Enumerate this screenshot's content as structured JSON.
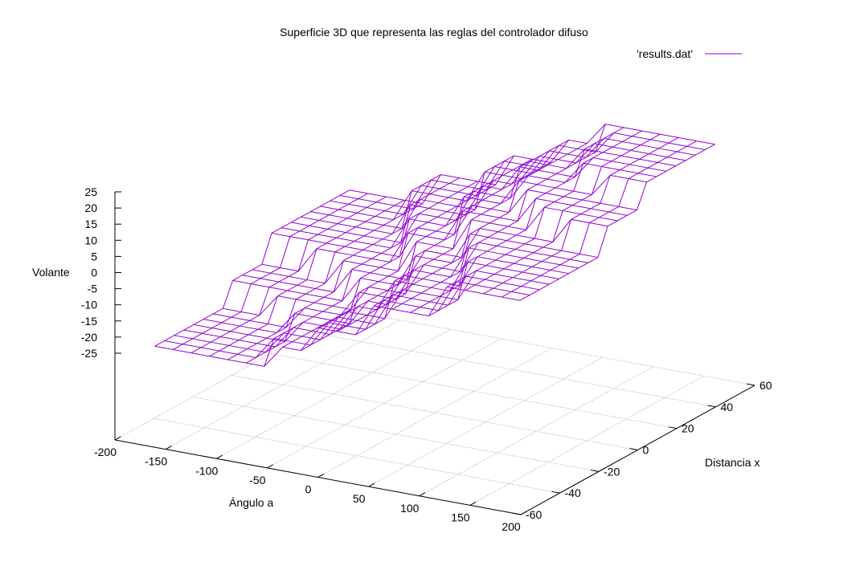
{
  "chart_data": {
    "type": "surface3d",
    "title": "Superficie 3D que representa las reglas del controlador difuso",
    "legend": {
      "label": "'results.dat'",
      "position": "top-right",
      "color": "#9400d3"
    },
    "xlabel": "Ángulo a",
    "ylabel": "Distancia x",
    "zlabel": "Volante",
    "xlim": [
      -200,
      200
    ],
    "ylim": [
      -60,
      60
    ],
    "zlim": [
      -25,
      25
    ],
    "x_ticks": [
      "-200",
      "-150",
      "-100",
      "-50",
      "0",
      "50",
      "100",
      "150",
      "200"
    ],
    "y_ticks": [
      "-60",
      "-40",
      "-20",
      "0",
      "20",
      "40",
      "60"
    ],
    "z_ticks": [
      "25",
      "20",
      "15",
      "10",
      "5",
      "0",
      "-5",
      "-10",
      "-15",
      "-20",
      "-25"
    ],
    "grid": true,
    "surface": {
      "x_range": [
        -180,
        180
      ],
      "y_range": [
        -50,
        50
      ],
      "grid_points": 21,
      "z_levels": [
        -25,
        -18,
        -10,
        0,
        10,
        18,
        25
      ]
    },
    "colors": {
      "surface": "#9400d3",
      "axes": "#000000",
      "grid": "#a0a0a0"
    }
  }
}
